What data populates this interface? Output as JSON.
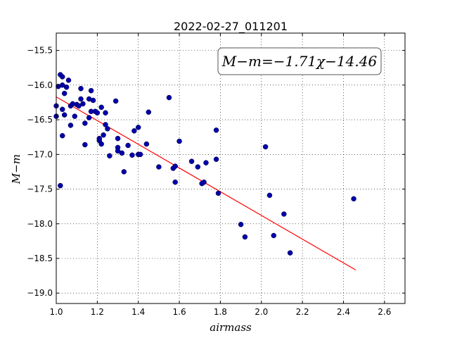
{
  "chart_data": {
    "type": "scatter",
    "title": "2022-02-27_011201",
    "xlabel": "airmass",
    "ylabel": "M−m",
    "xlim": [
      1.0,
      2.7
    ],
    "ylim": [
      -19.15,
      -15.25
    ],
    "x_ticks": [
      1.0,
      1.2,
      1.4,
      1.6,
      1.8,
      2.0,
      2.2,
      2.4,
      2.6
    ],
    "x_tick_labels": [
      "1.0",
      "1.2",
      "1.4",
      "1.6",
      "1.8",
      "2.0",
      "2.2",
      "2.4",
      "2.6"
    ],
    "y_ticks": [
      -15.5,
      -16.0,
      -16.5,
      -17.0,
      -17.5,
      -18.0,
      -18.5,
      -19.0
    ],
    "y_tick_labels": [
      "−15.5",
      "−16.0",
      "−16.5",
      "−17.0",
      "−17.5",
      "−18.0",
      "−18.5",
      "−19.0"
    ],
    "grid": true,
    "annotation": "M−m=−1.71χ−14.46",
    "annotation_position": "top-right",
    "fit_line": {
      "slope": -1.71,
      "intercept": -14.46,
      "x_range": [
        1.0,
        2.46
      ],
      "color": "#ff0000"
    },
    "marker_color": "#0000aa",
    "points": [
      [
        1.0,
        -16.3
      ],
      [
        1.0,
        -16.45
      ],
      [
        1.01,
        -16.02
      ],
      [
        1.02,
        -15.85
      ],
      [
        1.02,
        -17.45
      ],
      [
        1.03,
        -15.88
      ],
      [
        1.03,
        -16.0
      ],
      [
        1.03,
        -16.35
      ],
      [
        1.03,
        -16.73
      ],
      [
        1.04,
        -16.12
      ],
      [
        1.04,
        -16.43
      ],
      [
        1.05,
        -16.03
      ],
      [
        1.06,
        -15.93
      ],
      [
        1.07,
        -16.3
      ],
      [
        1.07,
        -16.58
      ],
      [
        1.08,
        -16.27
      ],
      [
        1.09,
        -16.45
      ],
      [
        1.1,
        -16.28
      ],
      [
        1.11,
        -16.3
      ],
      [
        1.12,
        -16.05
      ],
      [
        1.12,
        -16.2
      ],
      [
        1.13,
        -16.27
      ],
      [
        1.14,
        -16.86
      ],
      [
        1.14,
        -16.55
      ],
      [
        1.16,
        -16.47
      ],
      [
        1.16,
        -16.2
      ],
      [
        1.17,
        -16.08
      ],
      [
        1.17,
        -16.38
      ],
      [
        1.18,
        -16.22
      ],
      [
        1.19,
        -16.38
      ],
      [
        1.2,
        -16.4
      ],
      [
        1.21,
        -16.8
      ],
      [
        1.21,
        -16.77
      ],
      [
        1.22,
        -16.32
      ],
      [
        1.22,
        -16.85
      ],
      [
        1.23,
        -16.72
      ],
      [
        1.24,
        -16.4
      ],
      [
        1.24,
        -16.57
      ],
      [
        1.25,
        -16.63
      ],
      [
        1.26,
        -17.02
      ],
      [
        1.29,
        -16.23
      ],
      [
        1.3,
        -16.77
      ],
      [
        1.3,
        -16.9
      ],
      [
        1.3,
        -16.95
      ],
      [
        1.32,
        -16.98
      ],
      [
        1.33,
        -17.25
      ],
      [
        1.35,
        -16.87
      ],
      [
        1.37,
        -17.01
      ],
      [
        1.38,
        -16.66
      ],
      [
        1.4,
        -16.61
      ],
      [
        1.4,
        -17.0
      ],
      [
        1.41,
        -17.0
      ],
      [
        1.44,
        -16.85
      ],
      [
        1.45,
        -16.39
      ],
      [
        1.5,
        -17.18
      ],
      [
        1.55,
        -16.18
      ],
      [
        1.57,
        -17.2
      ],
      [
        1.58,
        -17.17
      ],
      [
        1.58,
        -17.4
      ],
      [
        1.6,
        -16.81
      ],
      [
        1.66,
        -17.1
      ],
      [
        1.69,
        -17.18
      ],
      [
        1.71,
        -17.42
      ],
      [
        1.72,
        -17.4
      ],
      [
        1.73,
        -17.12
      ],
      [
        1.78,
        -17.07
      ],
      [
        1.78,
        -16.65
      ],
      [
        1.79,
        -17.56
      ],
      [
        1.9,
        -18.01
      ],
      [
        1.92,
        -18.19
      ],
      [
        2.02,
        -16.89
      ],
      [
        2.04,
        -17.59
      ],
      [
        2.06,
        -18.17
      ],
      [
        2.11,
        -17.86
      ],
      [
        2.14,
        -18.42
      ],
      [
        2.45,
        -17.64
      ]
    ]
  }
}
